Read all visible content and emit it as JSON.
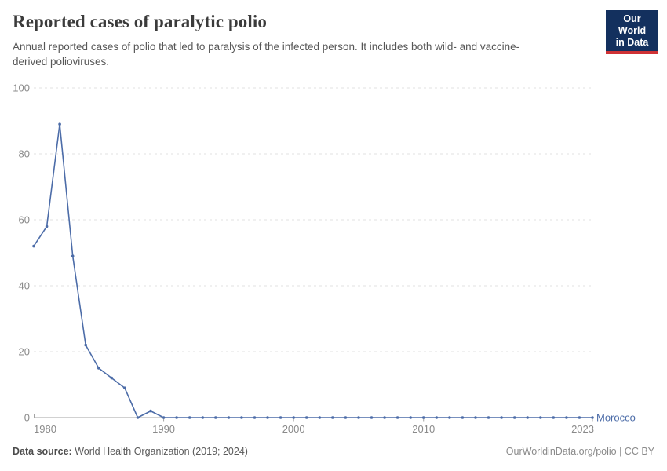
{
  "header": {
    "title": "Reported cases of paralytic polio",
    "subtitle": "Annual reported cases of polio that led to paralysis of the infected person. It includes both wild- and vaccine-derived polioviruses."
  },
  "logo": {
    "line1": "Our World",
    "line2": "in Data",
    "bg_color": "#13305E",
    "accent_color": "#CF3235"
  },
  "chart_data": {
    "type": "line",
    "title": "Reported cases of paralytic polio",
    "xlabel": "",
    "ylabel": "",
    "xlim": [
      1980,
      2023
    ],
    "ylim": [
      0,
      100
    ],
    "xticks": [
      1980,
      1990,
      2000,
      2010,
      2023
    ],
    "yticks": [
      0,
      20,
      40,
      60,
      80,
      100
    ],
    "grid": "horizontal-dashed",
    "legend_position": "end-of-line",
    "x": [
      1980,
      1981,
      1982,
      1983,
      1984,
      1985,
      1986,
      1987,
      1988,
      1989,
      1990,
      1991,
      1992,
      1993,
      1994,
      1995,
      1996,
      1997,
      1998,
      1999,
      2000,
      2001,
      2002,
      2003,
      2004,
      2005,
      2006,
      2007,
      2008,
      2009,
      2010,
      2011,
      2012,
      2013,
      2014,
      2015,
      2016,
      2017,
      2018,
      2019,
      2020,
      2021,
      2022,
      2023
    ],
    "series": [
      {
        "name": "Morocco",
        "color": "#4C6CA8",
        "values": [
          52,
          58,
          89,
          49,
          22,
          15,
          12,
          9,
          0,
          2,
          0,
          0,
          0,
          0,
          0,
          0,
          0,
          0,
          0,
          0,
          0,
          0,
          0,
          0,
          0,
          0,
          0,
          0,
          0,
          0,
          0,
          0,
          0,
          0,
          0,
          0,
          0,
          0,
          0,
          0,
          0,
          0,
          0,
          0
        ]
      }
    ],
    "colors": {
      "gridline": "#e0e0e0",
      "axis": "#a3a3a3",
      "tick_label": "#8a8a8a"
    }
  },
  "footer": {
    "source_label": "Data source:",
    "source_text": " World Health Organization (2019; 2024)",
    "rights": "OurWorldinData.org/polio | CC BY"
  }
}
